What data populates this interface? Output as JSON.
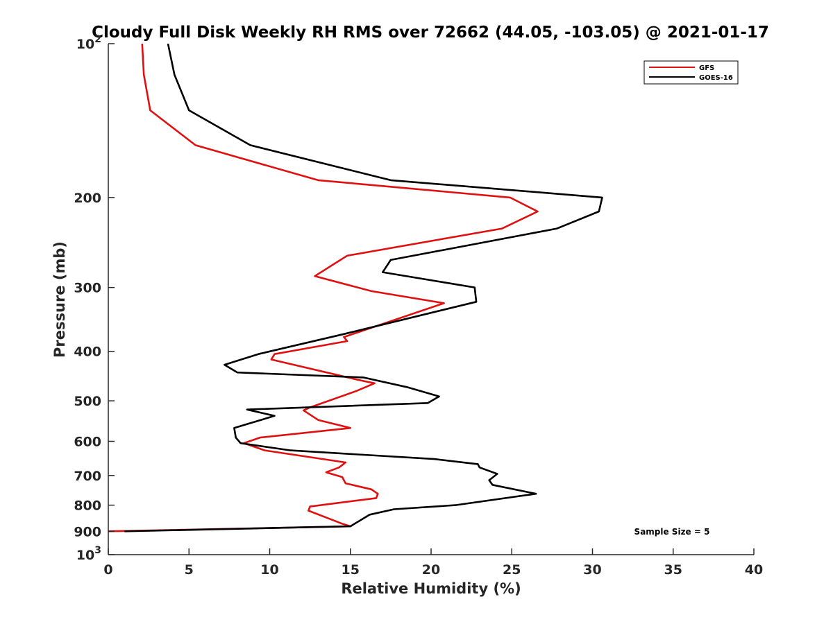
{
  "chart_data": {
    "type": "line",
    "title": "Cloudy Full Disk Weekly RH RMS over 72662 (44.05, -103.05) @ 2021-01-17",
    "xlabel": "Relative Humidity (%)",
    "ylabel": "Pressure (mb)",
    "xlim": [
      0,
      40
    ],
    "ylim": [
      100,
      1000
    ],
    "y_scale": "log",
    "y_reversed": true,
    "x_ticks": [
      "0",
      "5",
      "10",
      "15",
      "20",
      "25",
      "30",
      "35",
      "40"
    ],
    "y_ticks": [
      {
        "value": 100,
        "base": "10",
        "exp": "2"
      },
      {
        "value": 200,
        "label": "200"
      },
      {
        "value": 300,
        "label": "300"
      },
      {
        "value": 400,
        "label": "400"
      },
      {
        "value": 500,
        "label": "500"
      },
      {
        "value": 600,
        "label": "600"
      },
      {
        "value": 700,
        "label": "700"
      },
      {
        "value": 800,
        "label": "800"
      },
      {
        "value": 900,
        "label": "900"
      },
      {
        "value": 1000,
        "base": "10",
        "exp": "3"
      }
    ],
    "legend_position": "top-right",
    "annotation": "Sample Size = 5",
    "series": [
      {
        "name": "GFS",
        "color": "#e01010",
        "points": [
          [
            2.1,
            100
          ],
          [
            2.2,
            115
          ],
          [
            2.6,
            135
          ],
          [
            5.4,
            158
          ],
          [
            13.0,
            185
          ],
          [
            24.9,
            200
          ],
          [
            26.6,
            213
          ],
          [
            24.4,
            230
          ],
          [
            14.8,
            260
          ],
          [
            12.8,
            285
          ],
          [
            16.3,
            305
          ],
          [
            20.8,
            322
          ],
          [
            14.6,
            375
          ],
          [
            14.8,
            382
          ],
          [
            10.3,
            405
          ],
          [
            10.1,
            415
          ],
          [
            15.5,
            455
          ],
          [
            16.5,
            462
          ],
          [
            15.4,
            478
          ],
          [
            12.5,
            515
          ],
          [
            12.1,
            522
          ],
          [
            13.0,
            545
          ],
          [
            15.0,
            565
          ],
          [
            9.4,
            590
          ],
          [
            8.4,
            605
          ],
          [
            9.7,
            625
          ],
          [
            14.7,
            660
          ],
          [
            14.3,
            675
          ],
          [
            13.5,
            690
          ],
          [
            14.5,
            705
          ],
          [
            14.7,
            725
          ],
          [
            16.3,
            745
          ],
          [
            16.7,
            760
          ],
          [
            16.6,
            775
          ],
          [
            12.5,
            805
          ],
          [
            12.4,
            820
          ],
          [
            14.5,
            870
          ],
          [
            15.0,
            880
          ],
          [
            0.0,
            900
          ]
        ]
      },
      {
        "name": "GOES-16",
        "color": "#000000",
        "points": [
          [
            3.7,
            100
          ],
          [
            4.1,
            115
          ],
          [
            5.0,
            135
          ],
          [
            8.8,
            158
          ],
          [
            17.5,
            185
          ],
          [
            30.6,
            200
          ],
          [
            30.4,
            213
          ],
          [
            27.8,
            230
          ],
          [
            17.5,
            265
          ],
          [
            17.0,
            280
          ],
          [
            22.7,
            300
          ],
          [
            22.8,
            320
          ],
          [
            14.6,
            370
          ],
          [
            9.3,
            405
          ],
          [
            7.2,
            425
          ],
          [
            8.0,
            440
          ],
          [
            15.8,
            450
          ],
          [
            18.5,
            470
          ],
          [
            20.5,
            490
          ],
          [
            19.8,
            505
          ],
          [
            8.6,
            520
          ],
          [
            10.3,
            535
          ],
          [
            7.8,
            565
          ],
          [
            7.9,
            590
          ],
          [
            8.2,
            605
          ],
          [
            11.3,
            625
          ],
          [
            20.2,
            650
          ],
          [
            22.9,
            665
          ],
          [
            23.0,
            675
          ],
          [
            24.1,
            695
          ],
          [
            23.6,
            715
          ],
          [
            23.8,
            730
          ],
          [
            26.5,
            760
          ],
          [
            21.5,
            800
          ],
          [
            17.7,
            815
          ],
          [
            16.2,
            835
          ],
          [
            15.0,
            880
          ],
          [
            1.0,
            900
          ]
        ]
      }
    ]
  }
}
